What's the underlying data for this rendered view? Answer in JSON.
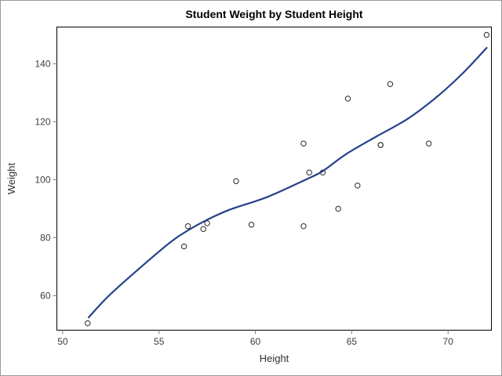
{
  "title": "Student Weight by Student Height",
  "chart_data": {
    "type": "scatter",
    "title": "Student Weight by Student Height",
    "xlabel": "Height",
    "ylabel": "Weight",
    "xlim": [
      49.7,
      72.25
    ],
    "ylim": [
      48.1,
      152.7
    ],
    "x_ticks": [
      50,
      55,
      60,
      65,
      70
    ],
    "y_ticks": [
      60,
      80,
      100,
      120,
      140
    ],
    "grid": false,
    "legend": "none",
    "series": [
      {
        "name": "student-observations",
        "type": "scatter",
        "marker": "open-circle",
        "color": "#383838",
        "points": [
          [
            69.0,
            112.5
          ],
          [
            56.5,
            84.0
          ],
          [
            65.3,
            98.0
          ],
          [
            62.8,
            102.5
          ],
          [
            63.5,
            102.5
          ],
          [
            57.3,
            83.0
          ],
          [
            59.8,
            84.5
          ],
          [
            62.5,
            112.5
          ],
          [
            62.5,
            84.0
          ],
          [
            59.0,
            99.5
          ],
          [
            51.3,
            50.5
          ],
          [
            64.3,
            90.0
          ],
          [
            56.3,
            77.0
          ],
          [
            66.5,
            112.0
          ],
          [
            72.0,
            150.0
          ],
          [
            64.8,
            128.0
          ],
          [
            67.0,
            133.0
          ],
          [
            57.5,
            85.0
          ],
          [
            66.5,
            112.0
          ]
        ]
      },
      {
        "name": "spline-fit-curve",
        "type": "line",
        "color": "#25418d",
        "stroke_width": 2.2,
        "points": [
          [
            51.35,
            52.5
          ],
          [
            52.4,
            60.0
          ],
          [
            54.0,
            69.5
          ],
          [
            55.7,
            79.0
          ],
          [
            57.1,
            84.8
          ],
          [
            58.6,
            89.5
          ],
          [
            60.6,
            94.0
          ],
          [
            62.6,
            100.0
          ],
          [
            63.5,
            103.0
          ],
          [
            64.7,
            108.8
          ],
          [
            66.3,
            115.0
          ],
          [
            67.9,
            121.0
          ],
          [
            69.4,
            128.5
          ],
          [
            70.8,
            137.0
          ],
          [
            72.0,
            145.5
          ]
        ]
      }
    ]
  },
  "colors": {
    "background": "#ffffff",
    "frame": "#000000",
    "tick_mark": "#7f7f7f",
    "tick_label": "#3d3d3d",
    "outer_border": "#9a9a9a",
    "curve": "#25418d",
    "marker": "#383838"
  }
}
